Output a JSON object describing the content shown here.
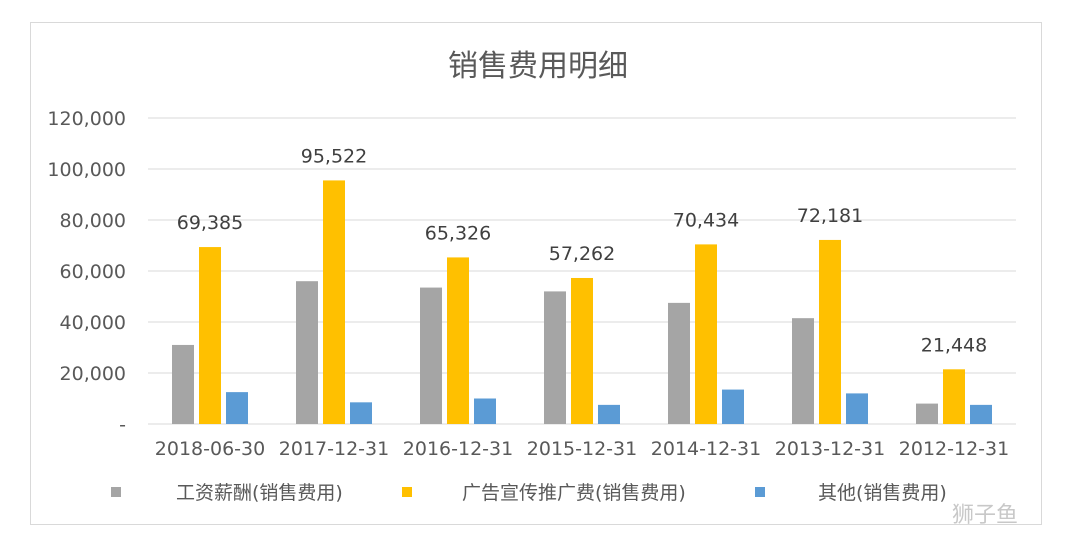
{
  "chart_data": {
    "type": "bar",
    "title": "销售费用明细",
    "categories": [
      "2018-06-30",
      "2017-12-31",
      "2016-12-31",
      "2015-12-31",
      "2014-12-31",
      "2013-12-31",
      "2012-12-31"
    ],
    "series": [
      {
        "name": "工资薪酬(销售费用)",
        "color": "#a5a5a5",
        "values": [
          31000,
          56000,
          53500,
          52000,
          47500,
          41500,
          8000
        ]
      },
      {
        "name": "广告宣传推广费(销售费用)",
        "color": "#ffc000",
        "values": [
          69385,
          95522,
          65326,
          57262,
          70434,
          72181,
          21448
        ],
        "data_labels": [
          "69,385",
          "95,522",
          "65,326",
          "57,262",
          "70,434",
          "72,181",
          "21,448"
        ]
      },
      {
        "name": "其他(销售费用)",
        "color": "#5b9bd5",
        "values": [
          12500,
          8500,
          10000,
          7500,
          13500,
          12000,
          7500
        ]
      }
    ],
    "y_ticks": [
      "-",
      "20,000",
      "40,000",
      "60,000",
      "80,000",
      "100,000",
      "120,000"
    ],
    "ylim": [
      0,
      120000
    ],
    "grid": true,
    "legend_position": "bottom"
  },
  "watermark": "狮子鱼"
}
